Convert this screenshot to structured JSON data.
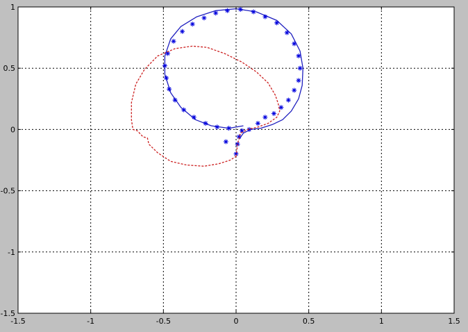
{
  "chart_data": {
    "type": "scatter",
    "title": "",
    "xlabel": "",
    "ylabel": "",
    "xlim": [
      -1.5,
      1.5
    ],
    "ylim": [
      -1.5,
      1.0
    ],
    "xticks": [
      -1.5,
      -1,
      -0.5,
      0,
      0.5,
      1,
      1.5
    ],
    "yticks": [
      -1.5,
      -1,
      -0.5,
      0,
      0.5,
      1
    ],
    "grid": true,
    "legend": "none",
    "series": [
      {
        "style": "solid-line",
        "color": "#1f1fbf",
        "points": [
          [
            0.02,
            -0.08
          ],
          [
            0.05,
            -0.03
          ],
          [
            0.1,
            0.0
          ],
          [
            0.17,
            0.01
          ],
          [
            0.25,
            0.04
          ],
          [
            0.32,
            0.08
          ],
          [
            0.38,
            0.15
          ],
          [
            0.43,
            0.25
          ],
          [
            0.455,
            0.36
          ],
          [
            0.46,
            0.5
          ],
          [
            0.44,
            0.64
          ],
          [
            0.38,
            0.78
          ],
          [
            0.28,
            0.89
          ],
          [
            0.14,
            0.96
          ],
          [
            0.0,
            0.985
          ],
          [
            -0.14,
            0.97
          ],
          [
            -0.27,
            0.92
          ],
          [
            -0.38,
            0.84
          ],
          [
            -0.45,
            0.74
          ],
          [
            -0.49,
            0.6
          ],
          [
            -0.49,
            0.45
          ],
          [
            -0.45,
            0.3
          ],
          [
            -0.38,
            0.18
          ],
          [
            -0.28,
            0.08
          ],
          [
            -0.17,
            0.03
          ],
          [
            -0.05,
            0.01
          ],
          [
            0.05,
            0.03
          ]
        ]
      },
      {
        "style": "star-markers",
        "color": "#0000dd",
        "points": [
          [
            0.0,
            -0.2
          ],
          [
            0.01,
            -0.12
          ],
          [
            0.02,
            -0.06
          ],
          [
            0.04,
            -0.01
          ],
          [
            0.09,
            0.0
          ],
          [
            0.15,
            0.05
          ],
          [
            0.2,
            0.1
          ],
          [
            0.26,
            0.13
          ],
          [
            0.31,
            0.18
          ],
          [
            0.36,
            0.24
          ],
          [
            0.4,
            0.32
          ],
          [
            0.43,
            0.4
          ],
          [
            0.44,
            0.5
          ],
          [
            0.43,
            0.6
          ],
          [
            0.4,
            0.7
          ],
          [
            0.35,
            0.79
          ],
          [
            0.28,
            0.87
          ],
          [
            0.2,
            0.92
          ],
          [
            0.12,
            0.96
          ],
          [
            0.03,
            0.98
          ],
          [
            -0.06,
            0.97
          ],
          [
            -0.14,
            0.95
          ],
          [
            -0.22,
            0.91
          ],
          [
            -0.3,
            0.86
          ],
          [
            -0.37,
            0.8
          ],
          [
            -0.43,
            0.72
          ],
          [
            -0.47,
            0.62
          ],
          [
            -0.49,
            0.52
          ],
          [
            -0.48,
            0.42
          ],
          [
            -0.46,
            0.33
          ],
          [
            -0.42,
            0.24
          ],
          [
            -0.36,
            0.16
          ],
          [
            -0.29,
            0.1
          ],
          [
            -0.21,
            0.05
          ],
          [
            -0.13,
            0.02
          ],
          [
            -0.05,
            0.01
          ],
          [
            -0.07,
            -0.1
          ]
        ]
      },
      {
        "style": "dashed-line",
        "color": "#cc2020",
        "points": [
          [
            0.0,
            -0.22
          ],
          [
            0.01,
            -0.12
          ],
          [
            0.03,
            -0.03
          ],
          [
            0.08,
            0.0
          ],
          [
            0.15,
            0.02
          ],
          [
            0.22,
            0.05
          ],
          [
            0.28,
            0.1
          ],
          [
            0.3,
            0.15
          ],
          [
            0.29,
            0.21
          ],
          [
            0.27,
            0.28
          ],
          [
            0.22,
            0.38
          ],
          [
            0.14,
            0.47
          ],
          [
            0.04,
            0.55
          ],
          [
            -0.08,
            0.62
          ],
          [
            -0.2,
            0.67
          ],
          [
            -0.3,
            0.68
          ],
          [
            -0.42,
            0.66
          ],
          [
            -0.54,
            0.6
          ],
          [
            -0.63,
            0.49
          ],
          [
            -0.69,
            0.37
          ],
          [
            -0.72,
            0.22
          ],
          [
            -0.72,
            0.08
          ],
          [
            -0.71,
            0.0
          ],
          [
            -0.68,
            -0.01
          ],
          [
            -0.64,
            -0.06
          ],
          [
            -0.61,
            -0.07
          ],
          [
            -0.6,
            -0.12
          ],
          [
            -0.54,
            -0.19
          ],
          [
            -0.45,
            -0.26
          ],
          [
            -0.34,
            -0.29
          ],
          [
            -0.22,
            -0.3
          ],
          [
            -0.12,
            -0.28
          ],
          [
            -0.04,
            -0.25
          ],
          [
            0.0,
            -0.22
          ]
        ]
      }
    ]
  }
}
